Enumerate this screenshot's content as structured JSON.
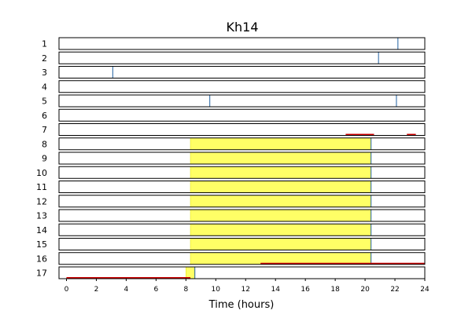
{
  "chart_data": {
    "type": "event-raster",
    "title": "Kh14",
    "xlabel": "Time (hours)",
    "ylabel": "",
    "xlim": [
      -0.5,
      24
    ],
    "xticks": [
      0,
      2,
      4,
      6,
      8,
      10,
      12,
      14,
      16,
      18,
      20,
      22,
      24
    ],
    "grid": false,
    "rows": [
      {
        "label": "1",
        "events": [
          22.2
        ],
        "fills": [],
        "lines": []
      },
      {
        "label": "2",
        "events": [
          20.9
        ],
        "fills": [],
        "lines": []
      },
      {
        "label": "3",
        "events": [
          3.1
        ],
        "fills": [],
        "lines": []
      },
      {
        "label": "4",
        "events": [],
        "fills": [],
        "lines": []
      },
      {
        "label": "5",
        "events": [
          9.6,
          22.1
        ],
        "fills": [],
        "lines": []
      },
      {
        "label": "6",
        "events": [],
        "fills": [],
        "lines": []
      },
      {
        "label": "7",
        "events": [],
        "fills": [],
        "lines": [
          [
            18.7,
            20.6
          ],
          [
            22.8,
            23.4
          ]
        ]
      },
      {
        "label": "8",
        "events": [
          20.4
        ],
        "fills": [
          [
            8.3,
            20.4
          ]
        ],
        "lines": []
      },
      {
        "label": "9",
        "events": [
          20.4
        ],
        "fills": [
          [
            8.3,
            20.4
          ]
        ],
        "lines": []
      },
      {
        "label": "10",
        "events": [
          20.4
        ],
        "fills": [
          [
            8.3,
            20.4
          ]
        ],
        "lines": []
      },
      {
        "label": "11",
        "events": [
          20.4
        ],
        "fills": [
          [
            8.3,
            20.4
          ]
        ],
        "lines": []
      },
      {
        "label": "12",
        "events": [
          20.4
        ],
        "fills": [
          [
            8.3,
            20.4
          ]
        ],
        "lines": []
      },
      {
        "label": "13",
        "events": [
          20.4
        ],
        "fills": [
          [
            8.3,
            20.4
          ]
        ],
        "lines": []
      },
      {
        "label": "14",
        "events": [
          20.4
        ],
        "fills": [
          [
            8.3,
            20.4
          ]
        ],
        "lines": []
      },
      {
        "label": "15",
        "events": [
          20.4
        ],
        "fills": [
          [
            8.3,
            20.4
          ]
        ],
        "lines": []
      },
      {
        "label": "16",
        "events": [
          20.4
        ],
        "fills": [
          [
            8.3,
            20.4
          ]
        ],
        "lines": [
          [
            13.0,
            24.0
          ]
        ]
      },
      {
        "label": "17",
        "events": [
          8.6
        ],
        "fills": [
          [
            8.0,
            8.6
          ]
        ],
        "lines": [
          [
            0.0,
            8.3
          ]
        ]
      }
    ],
    "colors": {
      "fill": "#ffff66",
      "fill_edge": "#e0e000",
      "event": "#1f5fa0",
      "line": "#cc0000",
      "frame": "#000000"
    }
  }
}
